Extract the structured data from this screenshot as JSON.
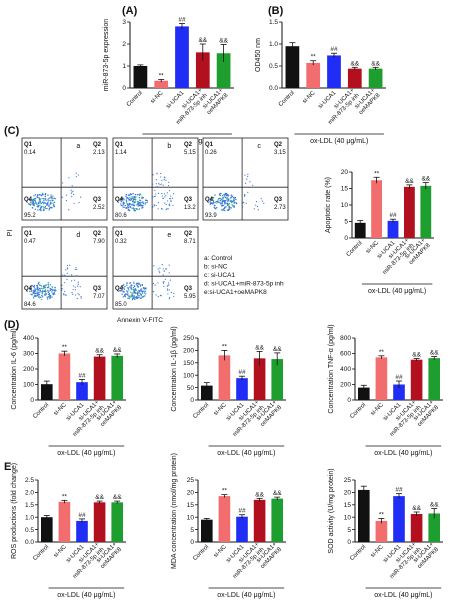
{
  "colors": {
    "Control": "#111111",
    "si-NC": "#f26d6d",
    "si-UCA1": "#1f2df5",
    "si-UCA1+ miR-873-5p inh": "#b3101f",
    "si-UCA1+ oeMAPK8": "#1e9e2e",
    "flow_dots": "#3a78d8"
  },
  "panel_labels": {
    "A": "(A)",
    "B": "(B)",
    "C": "(C)",
    "D": "(D)",
    "E": "E"
  },
  "group_label": "ox-LDL (40 μg/mL)",
  "flow": {
    "x_axis_label": "Annexin V-FITC",
    "y_axis_label": "PI",
    "quadrant_names": {
      "q1": "Q1",
      "q2": "Q2",
      "q3": "Q3",
      "q4": "Q4"
    },
    "plots": [
      {
        "letter": "a",
        "q1": "0.14",
        "q2": "2.13",
        "q3": "2.52",
        "q4": "95.2"
      },
      {
        "letter": "b",
        "q1": "1.14",
        "q2": "5.15",
        "q3": "13.2",
        "q4": "80.6"
      },
      {
        "letter": "c",
        "q1": "0.26",
        "q2": "3.15",
        "q3": "2.73",
        "q4": "93.9"
      },
      {
        "letter": "d",
        "q1": "0.47",
        "q2": "7.90",
        "q3": "7.07",
        "q4": "84.6"
      },
      {
        "letter": "e",
        "q1": "0.32",
        "q2": "8.71",
        "q3": "5.95",
        "q4": "85.0"
      }
    ],
    "legend": [
      "a: Control",
      "b: si-NC",
      "c: si-UCA1",
      "d: si-UCA1+miR-873-5p inh",
      "e:si-UCA1+oeMAPK8"
    ]
  },
  "chart_data": [
    {
      "id": "A",
      "type": "bar",
      "categories": [
        "Control",
        "si-NC",
        "si-UCA1",
        "si-UCA1+ miR-873-5p inh",
        "si-UCA1+ oeMAPK8"
      ],
      "values": [
        1.0,
        0.33,
        2.8,
        1.62,
        1.58
      ],
      "errors": [
        0.05,
        0.06,
        0.13,
        0.38,
        0.4
      ],
      "ylabel": "miR-873-5p expression",
      "ylim": [
        0,
        3
      ],
      "yticks": [
        "0",
        "1",
        "2",
        "3"
      ],
      "annotations": [
        "",
        "**",
        "##",
        "&&",
        "&&"
      ],
      "group_label": "ox-LDL (40 μg/mL)"
    },
    {
      "id": "B",
      "type": "bar",
      "categories": [
        "Control",
        "si-NC",
        "si-UCA1",
        "si-UCA1+ miR-873-5p inh",
        "si-UCA1+ oeMAPK8"
      ],
      "values": [
        0.95,
        0.57,
        0.74,
        0.44,
        0.44
      ],
      "errors": [
        0.08,
        0.05,
        0.05,
        0.03,
        0.03
      ],
      "ylabel": "OD450 nm",
      "ylim": [
        0,
        1.5
      ],
      "yticks": [
        "0.0",
        "0.5",
        "1.0",
        "1.5"
      ],
      "annotations": [
        "",
        "**",
        "##",
        "&&",
        "&&"
      ],
      "group_label": "ox-LDL (40 μg/mL)"
    },
    {
      "id": "C",
      "type": "bar",
      "categories": [
        "Control",
        "si-NC",
        "si-UCA1",
        "si-UCA1+ miR-873-5p inh",
        "si-UCA1+ oeMAPK8"
      ],
      "values": [
        4.6,
        17.5,
        5.2,
        15.5,
        15.8
      ],
      "errors": [
        0.7,
        0.9,
        0.5,
        0.6,
        1.0
      ],
      "ylabel": "Apoptotic rate (%)",
      "ylim": [
        0,
        20
      ],
      "yticks": [
        "0",
        "5",
        "10",
        "15",
        "20"
      ],
      "annotations": [
        "",
        "**",
        "##",
        "&&",
        "&&"
      ],
      "group_label": "ox-LDL (40 μg/mL)"
    },
    {
      "id": "D1",
      "type": "bar",
      "categories": [
        "Control",
        "si-NC",
        "si-UCA1",
        "si-UCA1+ miR-873-5p inh",
        "si-UCA1+ oeMAPK8"
      ],
      "values": [
        102,
        300,
        115,
        280,
        285
      ],
      "errors": [
        20,
        15,
        18,
        12,
        12
      ],
      "ylabel": "Concentration IL-6 (pg/ml)",
      "ylim": [
        0,
        400
      ],
      "yticks": [
        "0",
        "100",
        "200",
        "300",
        "400"
      ],
      "annotations": [
        "",
        "**",
        "##",
        "&&",
        "&&"
      ],
      "group_label": "ox-LDL (40 μg/mL)"
    },
    {
      "id": "D2",
      "type": "bar",
      "categories": [
        "Control",
        "si-NC",
        "si-UCA1",
        "si-UCA1+ miR-873-5p inh",
        "si-UCA1+ oeMAPK8"
      ],
      "values": [
        58,
        180,
        88,
        168,
        165
      ],
      "errors": [
        12,
        20,
        8,
        28,
        25
      ],
      "ylabel": "Concentration IL-1β (pg/ml)",
      "ylim": [
        0,
        250
      ],
      "yticks": [
        "0",
        "50",
        "100",
        "150",
        "200",
        "250"
      ],
      "annotations": [
        "",
        "**",
        "##",
        "&&",
        "&&"
      ],
      "group_label": "ox-LDL (40 μg/mL)"
    },
    {
      "id": "D3",
      "type": "bar",
      "categories": [
        "Control",
        "si-NC",
        "si-UCA1",
        "si-UCA1+ miR-873-5p inh",
        "si-UCA1+ oeMAPK8"
      ],
      "values": [
        160,
        550,
        200,
        520,
        540
      ],
      "errors": [
        30,
        20,
        45,
        15,
        20
      ],
      "ylabel": "Concentration TNF-α (pg/ml)",
      "ylim": [
        0,
        800
      ],
      "yticks": [
        "0",
        "200",
        "400",
        "600",
        "800"
      ],
      "annotations": [
        "",
        "**",
        "##",
        "&&",
        "&&"
      ],
      "group_label": "ox-LDL (40 μg/mL)"
    },
    {
      "id": "E1",
      "type": "bar",
      "categories": [
        "Control",
        "si-NC",
        "si-UCA1",
        "si-UCA1+ miR-873-5p inh",
        "si-UCA1+ oeMAPK8"
      ],
      "values": [
        1.0,
        1.62,
        0.85,
        1.6,
        1.6
      ],
      "errors": [
        0.07,
        0.06,
        0.08,
        0.05,
        0.05
      ],
      "ylabel": "ROS productions (fold change)",
      "ylim": [
        0,
        2.5
      ],
      "yticks": [
        "0.0",
        "0.5",
        "1.0",
        "1.5",
        "2.0",
        "2.5"
      ],
      "annotations": [
        "",
        "**",
        "##",
        "&&",
        "&&"
      ],
      "group_label": "ox-LDL (40 μg/mL)"
    },
    {
      "id": "E2",
      "type": "bar",
      "categories": [
        "Control",
        "si-NC",
        "si-UCA1",
        "si-UCA1+ miR-873-5p inh",
        "si-UCA1+ oeMAPK8"
      ],
      "values": [
        9,
        18.5,
        10.2,
        17,
        17.5
      ],
      "errors": [
        0.5,
        0.6,
        0.8,
        0.6,
        0.6
      ],
      "ylabel": "MDA concentration (nmol/mg protein)",
      "ylim": [
        0,
        25
      ],
      "yticks": [
        "0",
        "5",
        "10",
        "15",
        "20",
        "25"
      ],
      "annotations": [
        "",
        "**",
        "##",
        "&&",
        "&&"
      ],
      "group_label": "ox-LDL (40 μg/mL)"
    },
    {
      "id": "E3",
      "type": "bar",
      "categories": [
        "Control",
        "si-NC",
        "si-UCA1",
        "si-UCA1+ miR-873-5p inh",
        "si-UCA1+ oeMAPK8"
      ],
      "values": [
        21,
        8.5,
        18.5,
        11.3,
        11.5
      ],
      "errors": [
        1.5,
        1.0,
        1.0,
        0.8,
        2.0
      ],
      "ylabel": "SOD activity (U/mg protein)",
      "ylim": [
        0,
        25
      ],
      "yticks": [
        "0",
        "5",
        "10",
        "15",
        "20",
        "25"
      ],
      "annotations": [
        "",
        "**",
        "##",
        "&&",
        "&&"
      ],
      "group_label": "ox-LDL (40 μg/mL)"
    }
  ]
}
